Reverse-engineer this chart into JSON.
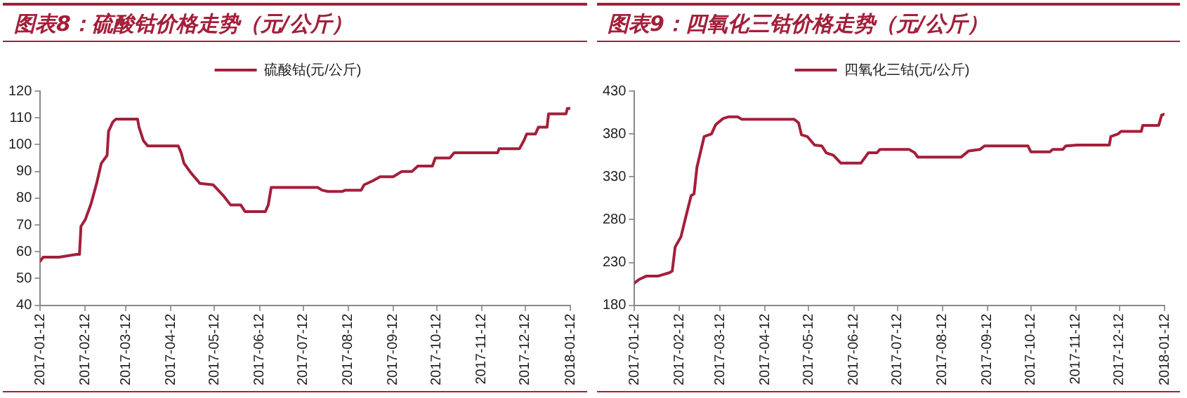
{
  "chart_data": [
    {
      "type": "line",
      "title": "图表8：硫酸钴价格走势（元/公斤）",
      "legend": "top",
      "grid": false,
      "xlim": [
        "2017-01-12",
        "2018-01-12"
      ],
      "xticks": [
        "2017-01-12",
        "2017-02-12",
        "2017-03-12",
        "2017-04-12",
        "2017-05-12",
        "2017-06-12",
        "2017-07-12",
        "2017-08-12",
        "2017-09-12",
        "2017-10-12",
        "2017-11-12",
        "2017-12-12",
        "2018-01-12"
      ],
      "ylim": [
        40,
        120
      ],
      "yticks": [
        40,
        50,
        60,
        70,
        80,
        90,
        100,
        110,
        120
      ],
      "series": [
        {
          "name": "硫酸钴(元/公斤)",
          "color": "#a31f3a",
          "x": [
            "2017-01-12",
            "2017-01-14",
            "2017-01-25",
            "2017-02-06",
            "2017-02-08",
            "2017-02-09",
            "2017-02-12",
            "2017-02-16",
            "2017-02-20",
            "2017-02-23",
            "2017-02-27",
            "2017-02-28",
            "2017-03-03",
            "2017-03-05",
            "2017-03-20",
            "2017-03-21",
            "2017-03-24",
            "2017-03-27",
            "2017-04-17",
            "2017-04-19",
            "2017-04-21",
            "2017-04-25",
            "2017-04-28",
            "2017-05-02",
            "2017-05-11",
            "2017-05-18",
            "2017-05-23",
            "2017-05-30",
            "2017-06-02",
            "2017-06-16",
            "2017-06-18",
            "2017-06-20",
            "2017-07-22",
            "2017-07-25",
            "2017-07-29",
            "2017-08-08",
            "2017-08-10",
            "2017-08-21",
            "2017-08-23",
            "2017-08-29",
            "2017-09-03",
            "2017-09-12",
            "2017-09-18",
            "2017-09-25",
            "2017-09-29",
            "2017-10-09",
            "2017-10-11",
            "2017-10-21",
            "2017-10-24",
            "2017-11-23",
            "2017-11-24",
            "2017-12-08",
            "2017-12-11",
            "2017-12-13",
            "2017-12-19",
            "2017-12-21",
            "2017-12-27",
            "2017-12-28",
            "2018-01-09",
            "2018-01-10",
            "2018-01-12"
          ],
          "values": [
            56.5,
            58,
            58,
            59,
            59,
            69.5,
            72,
            78,
            86,
            93,
            96,
            105,
            108.5,
            109.5,
            109.5,
            106.5,
            101.5,
            99.5,
            99.5,
            97,
            93,
            90,
            88,
            85.5,
            85,
            81,
            77.5,
            77.5,
            75,
            75,
            77.5,
            84,
            84,
            83,
            82.5,
            82.5,
            83,
            83,
            85,
            86.5,
            88,
            88,
            90,
            90,
            92,
            92,
            95,
            95,
            97,
            97,
            98.5,
            98.5,
            101.5,
            104,
            104,
            106.5,
            106.5,
            111.5,
            111.5,
            113.5,
            113.5
          ]
        }
      ]
    },
    {
      "type": "line",
      "title": "图表9：四氧化三钴价格走势（元/公斤）",
      "legend": "top",
      "grid": false,
      "xlim": [
        "2017-01-12",
        "2018-01-12"
      ],
      "xticks": [
        "2017-01-12",
        "2017-02-12",
        "2017-03-12",
        "2017-04-12",
        "2017-05-12",
        "2017-06-12",
        "2017-07-12",
        "2017-08-12",
        "2017-09-12",
        "2017-10-12",
        "2017-11-12",
        "2017-12-12",
        "2018-01-12"
      ],
      "ylim": [
        180,
        430
      ],
      "yticks": [
        180,
        230,
        280,
        330,
        380,
        430
      ],
      "series": [
        {
          "name": "四氧化三钴(元/公斤)",
          "color": "#a31f3a",
          "x": [
            "2017-01-12",
            "2017-01-15",
            "2017-01-20",
            "2017-01-28",
            "2017-02-05",
            "2017-02-07",
            "2017-02-09",
            "2017-02-13",
            "2017-02-16",
            "2017-02-20",
            "2017-02-22",
            "2017-02-24",
            "2017-03-01",
            "2017-03-06",
            "2017-03-09",
            "2017-03-14",
            "2017-03-18",
            "2017-03-24",
            "2017-03-27",
            "2017-05-02",
            "2017-05-05",
            "2017-05-07",
            "2017-05-11",
            "2017-05-16",
            "2017-05-21",
            "2017-05-24",
            "2017-05-29",
            "2017-06-03",
            "2017-06-17",
            "2017-06-22",
            "2017-06-28",
            "2017-06-30",
            "2017-07-20",
            "2017-07-24",
            "2017-07-26",
            "2017-08-25",
            "2017-08-30",
            "2017-09-07",
            "2017-09-10",
            "2017-10-10",
            "2017-10-12",
            "2017-10-25",
            "2017-10-27",
            "2017-11-03",
            "2017-11-05",
            "2017-11-13",
            "2017-12-05",
            "2017-12-06",
            "2017-12-11",
            "2017-12-13",
            "2017-12-27",
            "2017-12-28",
            "2018-01-08",
            "2018-01-10",
            "2018-01-12"
          ],
          "values": [
            206,
            210,
            214,
            214,
            218,
            220,
            248,
            260,
            281,
            308,
            310,
            341,
            377,
            380,
            391,
            398,
            400,
            400,
            397,
            397,
            393,
            379,
            377,
            367,
            366,
            358,
            355,
            346,
            346,
            358,
            358,
            362,
            362,
            358,
            353,
            353,
            360,
            362,
            366,
            366,
            359,
            359,
            362,
            362,
            366,
            367,
            367,
            377,
            380,
            383,
            383,
            390,
            390,
            402,
            403
          ]
        }
      ]
    }
  ]
}
